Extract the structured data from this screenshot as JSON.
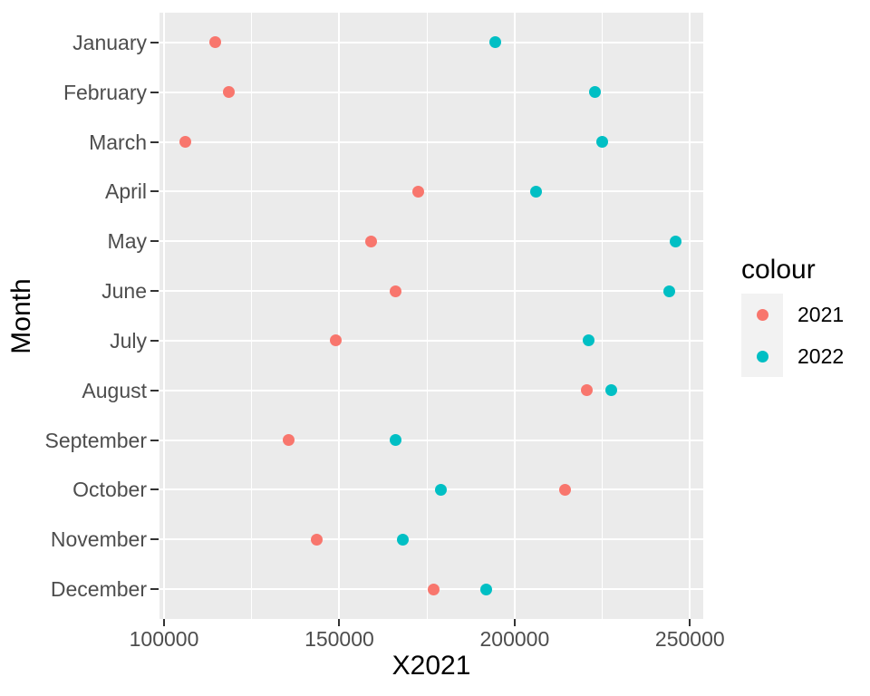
{
  "chart_data": {
    "type": "scatter",
    "title": "",
    "xlabel": "X2021",
    "ylabel": "Month",
    "categories": [
      "January",
      "February",
      "March",
      "April",
      "May",
      "June",
      "July",
      "August",
      "September",
      "October",
      "November",
      "December"
    ],
    "series": [
      {
        "name": "2021",
        "color": "#F8766D",
        "values": [
          114500,
          118500,
          106000,
          172500,
          159000,
          166000,
          149000,
          220500,
          135500,
          214500,
          143500,
          177000
        ]
      },
      {
        "name": "2022",
        "color": "#00BFC4",
        "values": [
          194500,
          223000,
          225000,
          206000,
          246000,
          244000,
          221000,
          227500,
          166000,
          179000,
          168000,
          192000
        ]
      }
    ],
    "x_axis": {
      "min": 98700,
      "max": 253800,
      "major_ticks": [
        100000,
        150000,
        200000,
        250000
      ],
      "minor_ticks": [
        125000,
        175000,
        225000
      ],
      "tick_labels": [
        "100000",
        "150000",
        "200000",
        "250000"
      ]
    },
    "legend": {
      "title": "colour",
      "position": "right"
    },
    "grid": true,
    "panel_background": "#EBEBEB",
    "grid_color": "#FFFFFF",
    "tick_color": "#333333",
    "axis_text_color": "#4D4D4D"
  }
}
